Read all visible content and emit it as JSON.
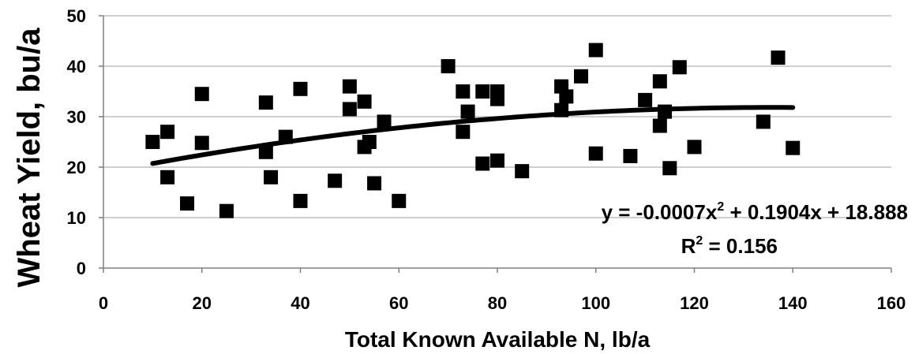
{
  "chart_data": {
    "type": "scatter",
    "title": "",
    "xlabel": "Total Known Available N, lb/a",
    "ylabel": "Wheat Yield, bu/a",
    "xlim": [
      0,
      160
    ],
    "ylim": [
      0,
      50
    ],
    "x_ticks": [
      0,
      20,
      40,
      60,
      80,
      100,
      120,
      140,
      160
    ],
    "y_ticks": [
      0,
      10,
      20,
      30,
      40,
      50
    ],
    "x_tick_labels": [
      "0",
      "20",
      "40",
      "60",
      "80",
      "100",
      "120",
      "140",
      "160"
    ],
    "y_tick_labels": [
      "0",
      "10",
      "20",
      "30",
      "40",
      "50"
    ],
    "grid": "horizontal",
    "marker": "square",
    "series": [
      {
        "points": [
          [
            10,
            25
          ],
          [
            13,
            27
          ],
          [
            13,
            18
          ],
          [
            17,
            12.8
          ],
          [
            20,
            34.5
          ],
          [
            20,
            24.8
          ],
          [
            25,
            11.3
          ],
          [
            33,
            32.8
          ],
          [
            33,
            23
          ],
          [
            34,
            18
          ],
          [
            37,
            26
          ],
          [
            40,
            35.5
          ],
          [
            40,
            13.3
          ],
          [
            47,
            17.3
          ],
          [
            50,
            36
          ],
          [
            50,
            31.5
          ],
          [
            53,
            33
          ],
          [
            53,
            24
          ],
          [
            54,
            25
          ],
          [
            55,
            16.8
          ],
          [
            57,
            29
          ],
          [
            60,
            13.3
          ],
          [
            70,
            40
          ],
          [
            73,
            35
          ],
          [
            73,
            27
          ],
          [
            74,
            31
          ],
          [
            77,
            35
          ],
          [
            77,
            20.7
          ],
          [
            80,
            35
          ],
          [
            80,
            33.5
          ],
          [
            80,
            21.3
          ],
          [
            85,
            19.2
          ],
          [
            93,
            36
          ],
          [
            93,
            31.3
          ],
          [
            94,
            34
          ],
          [
            97,
            38
          ],
          [
            100,
            43.2
          ],
          [
            100,
            22.7
          ],
          [
            107,
            22.2
          ],
          [
            110,
            33.3
          ],
          [
            113,
            37
          ],
          [
            113,
            28.2
          ],
          [
            114,
            31
          ],
          [
            115,
            19.8
          ],
          [
            117,
            39.8
          ],
          [
            120,
            24
          ],
          [
            134,
            29
          ],
          [
            137,
            41.7
          ],
          [
            140,
            23.8
          ]
        ]
      }
    ],
    "trendline": {
      "type": "polynomial",
      "coefficients": [
        -0.0007,
        0.1904,
        18.888
      ],
      "x_range": [
        10,
        140
      ],
      "equation_prefix": "y = -0.0007x",
      "equation_exponent": "2",
      "equation_suffix": " + 0.1904x + 18.888",
      "r2_prefix": "R",
      "r2_exponent": "2",
      "r2_suffix": " = 0.156"
    },
    "colors": {
      "markers": "#000000",
      "trendline": "#000000",
      "gridline": "#bfbfbf",
      "axis": "#808080"
    }
  }
}
